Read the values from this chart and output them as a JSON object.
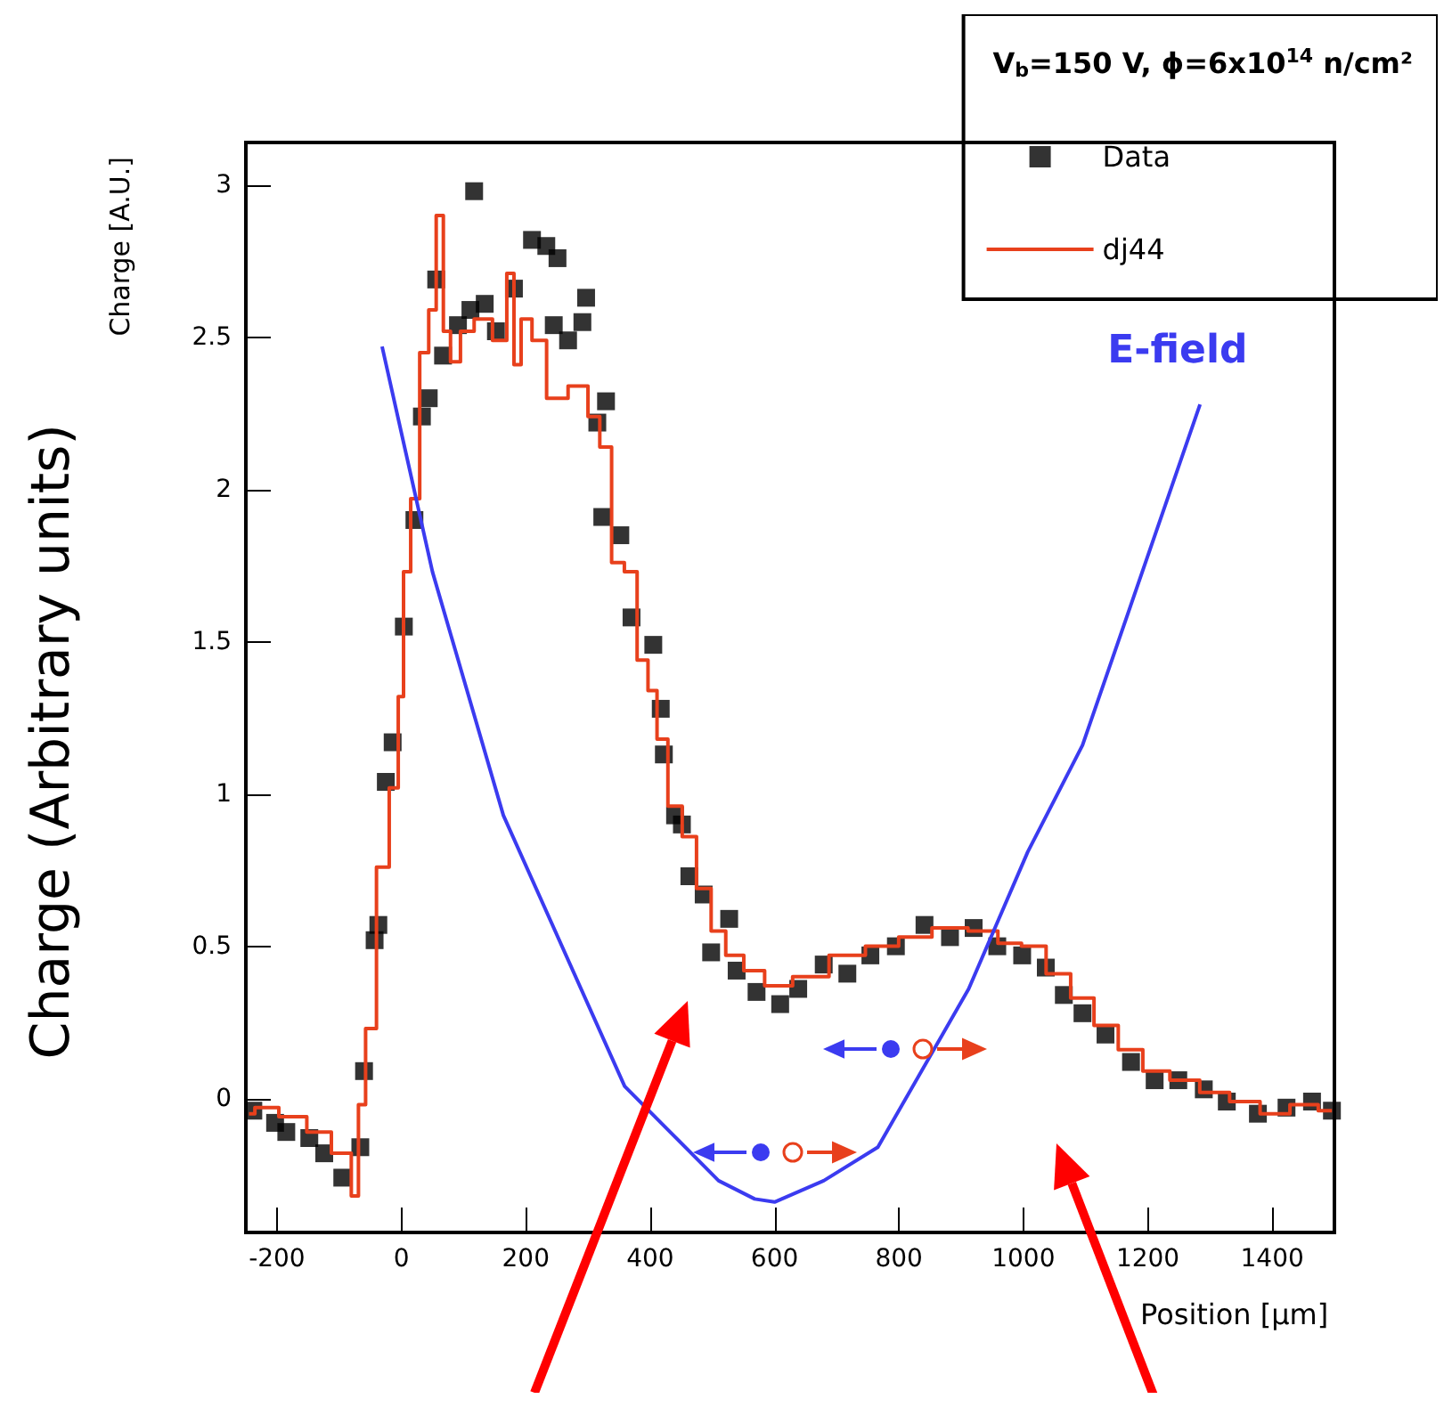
{
  "chart_data": {
    "type": "scatter",
    "ylabel": "Charge [A.U.]",
    "xlabel": "Position [µm]",
    "legend_title": "V$_{b}$=150 V, ϕ=6x10$^{14}$ n/cm²",
    "annotations": [
      "Charge (Arbitrary units)"
    ],
    "xlim": [
      -250,
      1500
    ],
    "xticks": [
      -200,
      0,
      200,
      400,
      600,
      800,
      {
        "value": 1000,
        "label": "1000"
      },
      {
        "value": 1200,
        "label": "1200"
      },
      {
        "value": 1400,
        "label": "1400"
      }
    ],
    "ylim": [
      -0.44,
      3.14
    ],
    "yticks": [
      0,
      0.5,
      1,
      1.5,
      2,
      2.5,
      3
    ],
    "grid": false,
    "legend": "top right",
    "series": [
      {
        "name": "Data",
        "marker": "square",
        "color": "#000000",
        "x": [
          -238,
          -203,
          -185,
          -148,
          -124,
          -95,
          -66,
          -60,
          -43,
          -37,
          -25,
          -14,
          4,
          21,
          33,
          44,
          56,
          67,
          91,
          111,
          117,
          134,
          152,
          181,
          210,
          233,
          251,
          245,
          268,
          291,
          297,
          315,
          329,
          323,
          352,
          370,
          405,
          417,
          422,
          440,
          451,
          463,
          486,
          498,
          527,
          539,
          571,
          609,
          638,
          679,
          717,
          754,
          795,
          841,
          882,
          920,
          958,
          998,
          1036,
          1065,
          1095,
          1132,
          1173,
          1211,
          1249,
          1290,
          1327,
          1377,
          1423,
          1464,
          1496
        ],
        "values": [
          -0.04,
          -0.08,
          -0.11,
          -0.13,
          -0.18,
          -0.26,
          -0.16,
          0.09,
          0.52,
          0.57,
          1.04,
          1.17,
          1.55,
          1.9,
          2.24,
          2.3,
          2.69,
          2.44,
          2.54,
          2.59,
          2.98,
          2.61,
          2.52,
          2.66,
          2.82,
          2.8,
          2.76,
          2.54,
          2.49,
          2.55,
          2.63,
          2.22,
          2.29,
          1.91,
          1.85,
          1.58,
          1.49,
          1.28,
          1.13,
          0.93,
          0.9,
          0.73,
          0.67,
          0.48,
          0.59,
          0.42,
          0.35,
          0.31,
          0.36,
          0.44,
          0.41,
          0.47,
          0.5,
          0.57,
          0.53,
          0.56,
          0.5,
          0.47,
          0.43,
          0.34,
          0.28,
          0.21,
          0.12,
          0.06,
          0.06,
          0.03,
          -0.01,
          -0.05,
          -0.03,
          -0.01,
          -0.04
        ]
      },
      {
        "name": "dj44",
        "type": "step",
        "marker": "none",
        "color": "#e8401c",
        "x": [
          -245,
          -226,
          -168,
          -136,
          -89,
          -72,
          -66,
          -49,
          -31,
          -8,
          -2,
          9,
          21,
          38,
          50,
          62,
          73,
          85,
          105,
          129,
          164,
          175,
          187,
          198,
          222,
          245,
          291,
          309,
          329,
          347,
          370,
          388,
          405,
          417,
          440,
          463,
          486,
          510,
          533,
          568,
          600,
          658,
          717,
          775,
          824,
          882,
          940,
          978,
          1016,
          1057,
          1095,
          1132,
          1173,
          1211,
          1260,
          1307,
          1356,
          1405,
          1452,
          1496
        ],
        "values": [
          -0.05,
          -0.03,
          -0.06,
          -0.11,
          -0.18,
          -0.32,
          -0.02,
          0.23,
          0.76,
          1.02,
          1.32,
          1.73,
          1.97,
          2.45,
          2.59,
          2.9,
          2.52,
          2.42,
          2.52,
          2.56,
          2.49,
          2.71,
          2.41,
          2.56,
          2.49,
          2.3,
          2.34,
          2.24,
          2.14,
          1.76,
          1.73,
          1.44,
          1.34,
          1.18,
          0.96,
          0.86,
          0.69,
          0.55,
          0.47,
          0.42,
          0.37,
          0.4,
          0.47,
          0.5,
          0.53,
          0.56,
          0.55,
          0.51,
          0.5,
          0.41,
          0.33,
          0.24,
          0.16,
          0.09,
          0.06,
          0.02,
          -0.01,
          -0.05,
          -0.02,
          -0.04
        ]
      },
      {
        "name": "E-field",
        "type": "line",
        "marker": "none",
        "color": "#3b3bf0",
        "x": [
          -31,
          50,
          164,
          359,
          510,
          568,
          600,
          679,
          766,
          912,
          1007,
          1095,
          1284
        ],
        "values": [
          2.47,
          1.73,
          0.93,
          0.04,
          -0.27,
          -0.33,
          -0.34,
          -0.27,
          -0.16,
          0.36,
          0.81,
          1.16,
          2.28
        ]
      }
    ]
  }
}
